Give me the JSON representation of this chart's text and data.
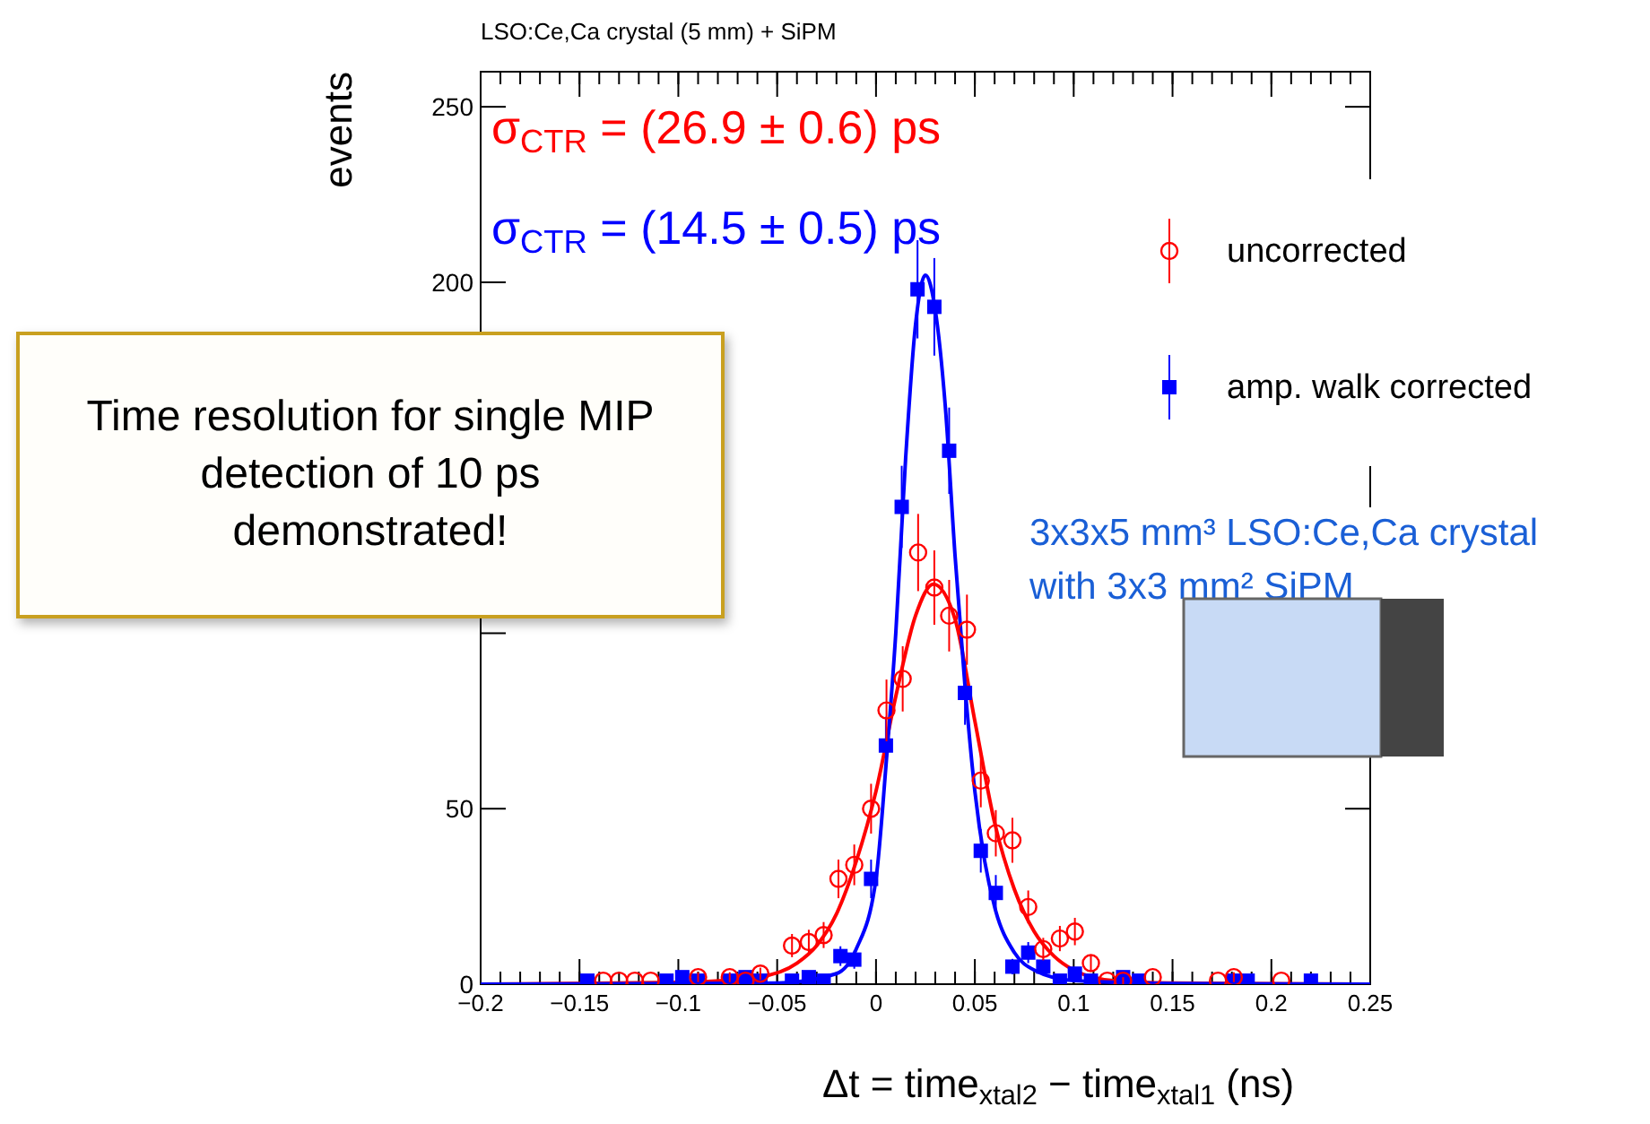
{
  "chart_data": {
    "type": "scatter",
    "title": "LSO:Ce,Ca crystal (5 mm) + SiPM",
    "xlabel": "Δt = time$_{xtal2}$ − time$_{xtal1}$ (ns)",
    "ylabel": "events",
    "xlim": [
      -0.2,
      0.25
    ],
    "xticks": [
      -0.2,
      -0.15,
      -0.1,
      -0.05,
      0,
      0.05,
      0.1,
      0.15,
      0.2,
      0.25
    ],
    "ylim": [
      0,
      260
    ],
    "yticks": [
      0,
      50,
      {
        "value": 100,
        "label": null
      },
      {
        "value": 150,
        "label": null
      },
      200,
      250
    ],
    "legend": "top right",
    "grid": false,
    "annotations": [
      "σ$_{CTR}$ = (26.9 ± 0.6) ps",
      "σ$_{CTR}$ = (14.5 ± 0.5) ps",
      "Time resolution for single MIP detection of 10 ps demonstrated!",
      "3x3x5 mm³ LSO:Ce,Ca crystal with 3x3 mm² SiPM"
    ],
    "series": [
      {
        "name": "uncorrected",
        "color": "#ff0000",
        "marker": "circle",
        "x": [
          -0.138,
          -0.13,
          -0.122,
          -0.114,
          -0.09,
          -0.074,
          -0.066,
          -0.0585,
          -0.0425,
          -0.034,
          -0.0265,
          -0.019,
          -0.011,
          -0.0025,
          0.0053,
          0.0135,
          0.0213,
          0.0295,
          0.037,
          0.046,
          0.053,
          0.0606,
          0.069,
          0.077,
          0.0846,
          0.093,
          0.1006,
          0.1087,
          0.117,
          0.125,
          0.14,
          0.173,
          0.181,
          0.205
        ],
        "values": [
          1,
          1,
          1,
          1,
          2,
          2,
          1,
          3,
          11,
          12,
          14,
          30,
          34,
          50,
          78,
          87,
          123,
          113,
          105,
          101,
          58,
          43,
          41,
          22,
          10,
          13,
          15,
          6,
          1,
          1,
          2,
          1,
          2,
          1
        ],
        "errors": [
          null,
          null,
          null,
          null,
          1.4,
          1.4,
          null,
          1.7,
          3.3,
          3.5,
          3.7,
          5.5,
          5.8,
          7.1,
          8.8,
          9.3,
          11,
          10.6,
          10.2,
          10,
          7.6,
          6.6,
          6.4,
          4.7,
          3.2,
          3.6,
          3.9,
          2.4,
          null,
          1,
          null,
          null,
          1.4,
          null
        ]
      },
      {
        "name": "amp. walk corrected",
        "color": "#0000ff",
        "marker": "square",
        "x": [
          -0.146,
          -0.106,
          -0.098,
          -0.09,
          -0.074,
          -0.066,
          -0.0585,
          -0.0425,
          -0.034,
          -0.0265,
          -0.018,
          -0.011,
          -0.0025,
          0.005,
          0.013,
          0.021,
          0.0295,
          0.037,
          0.045,
          0.053,
          0.0606,
          0.069,
          0.077,
          0.0846,
          0.093,
          0.1006,
          0.1087,
          0.125,
          0.133,
          0.181,
          0.188,
          0.22
        ],
        "values": [
          1,
          1,
          2,
          1,
          1,
          2,
          1,
          1,
          2,
          1,
          8,
          7,
          30,
          68,
          136,
          198,
          193,
          152,
          83,
          38,
          26,
          5,
          9,
          5,
          1,
          3,
          1,
          2,
          1,
          1,
          1,
          1
        ],
        "errors": [
          1,
          1,
          1.4,
          1,
          1,
          1.4,
          1,
          1,
          1.4,
          1,
          2.8,
          2.6,
          5.5,
          8.2,
          11.7,
          14,
          13.9,
          12.3,
          9.1,
          6.2,
          5.1,
          2.2,
          3,
          2.2,
          1,
          1.7,
          1,
          1.4,
          1,
          1,
          1,
          1
        ]
      },
      {
        "type": "line",
        "color": "#ff0000",
        "x": [
          -0.2,
          -0.1,
          -0.06,
          -0.04,
          -0.03,
          -0.02,
          -0.01,
          0,
          0.01,
          0.02,
          0.029,
          0.04,
          0.05,
          0.06,
          0.07,
          0.08,
          0.09,
          0.1,
          0.12,
          0.15,
          0.25
        ],
        "values": [
          0,
          0.5,
          2,
          6,
          11,
          20,
          35,
          55,
          82,
          105,
          114,
          104,
          75,
          46,
          27,
          15,
          8,
          4,
          1,
          0.3,
          0
        ]
      },
      {
        "type": "line",
        "color": "#0000ff",
        "x": [
          -0.2,
          -0.05,
          -0.02,
          -0.01,
          0,
          0.005,
          0.01,
          0.015,
          0.02,
          0.025,
          0.03,
          0.035,
          0.04,
          0.045,
          0.05,
          0.055,
          0.06,
          0.07,
          0.08,
          0.1,
          0.15,
          0.25
        ],
        "values": [
          0,
          0.3,
          3,
          10,
          30,
          62,
          100,
          150,
          188,
          202,
          192,
          165,
          122,
          85,
          55,
          35,
          22,
          9,
          4,
          1,
          0.2,
          0
        ]
      }
    ]
  }
}
